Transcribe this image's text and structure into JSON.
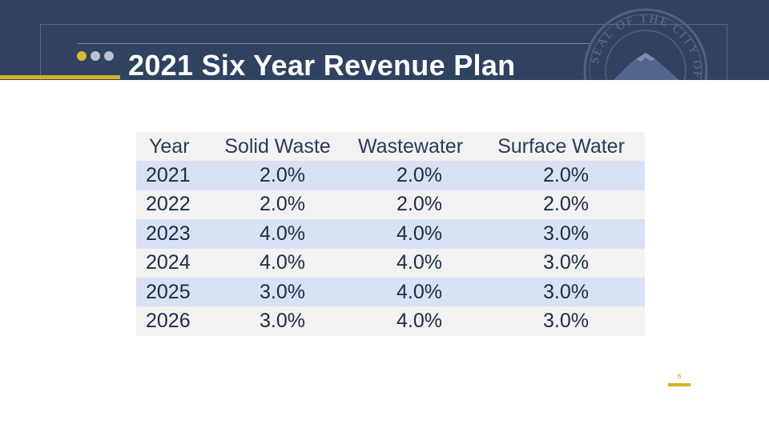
{
  "slide": {
    "title": "2021 Six Year Revenue Plan",
    "page_number": "6",
    "colors": {
      "header_band": "#2f4260",
      "accent_gold": "#d4b323",
      "dot_gold": "#d9bb38",
      "dot_gray": "#b8c2d4",
      "row_blue": "#d9e1f4",
      "row_gray": "#f2f2f2"
    },
    "seal": {
      "icon": "city-seal-icon",
      "text": "SEAL OF THE CITY OF TACOMA"
    }
  },
  "table": {
    "headers": [
      "Year",
      "Solid Waste",
      "Wastewater",
      "Surface Water"
    ],
    "rows": [
      [
        "2021",
        "2.0%",
        "2.0%",
        "2.0%"
      ],
      [
        "2022",
        "2.0%",
        "2.0%",
        "2.0%"
      ],
      [
        "2023",
        "4.0%",
        "4.0%",
        "3.0%"
      ],
      [
        "2024",
        "4.0%",
        "4.0%",
        "3.0%"
      ],
      [
        "2025",
        "3.0%",
        "4.0%",
        "3.0%"
      ],
      [
        "2026",
        "3.0%",
        "4.0%",
        "3.0%"
      ]
    ]
  }
}
